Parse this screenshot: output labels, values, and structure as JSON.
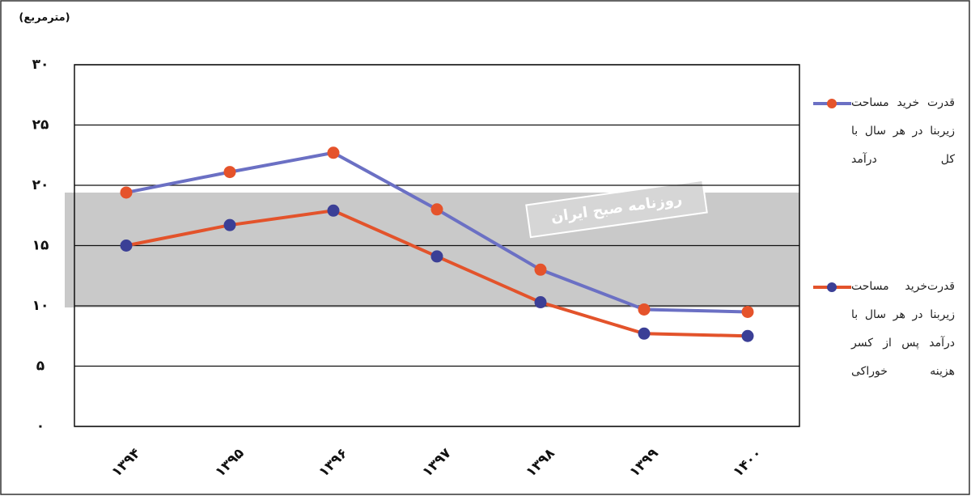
{
  "chart_data": {
    "type": "line",
    "y_unit": "(مترمربع)",
    "watermark": "روزنامه صبح ایران",
    "categories": [
      "۱۳۹۴",
      "۱۳۹۵",
      "۱۳۹۶",
      "۱۳۹۷",
      "۱۳۹۸",
      "۱۳۹۹",
      "۱۴۰۰"
    ],
    "series": [
      {
        "name": "قدرت خرید مساحت زیربنا در هر سال با کل درآمد",
        "color": "#6b70c4",
        "marker_color": "#e5532b",
        "values": [
          19.4,
          21.1,
          22.7,
          18.0,
          13.0,
          9.7,
          9.5
        ]
      },
      {
        "name": "قدرت‌خرید مساحت زیربنا در هر سال با درآمد پس از کسر هزینه خوراکی",
        "color": "#e3532b",
        "marker_color": "#3b3f96",
        "values": [
          15.0,
          16.7,
          17.9,
          14.1,
          10.3,
          7.7,
          7.5
        ]
      }
    ],
    "ylim": [
      0,
      30
    ],
    "yticks": [
      {
        "value": 0,
        "label": "۰"
      },
      {
        "value": 5,
        "label": "۵"
      },
      {
        "value": 10,
        "label": "۱۰"
      },
      {
        "value": 15,
        "label": "۱۵"
      },
      {
        "value": 20,
        "label": "۲۰"
      },
      {
        "value": 25,
        "label": "۲۵"
      },
      {
        "value": 30,
        "label": "۳۰"
      }
    ],
    "grid": true,
    "legend": "right"
  }
}
